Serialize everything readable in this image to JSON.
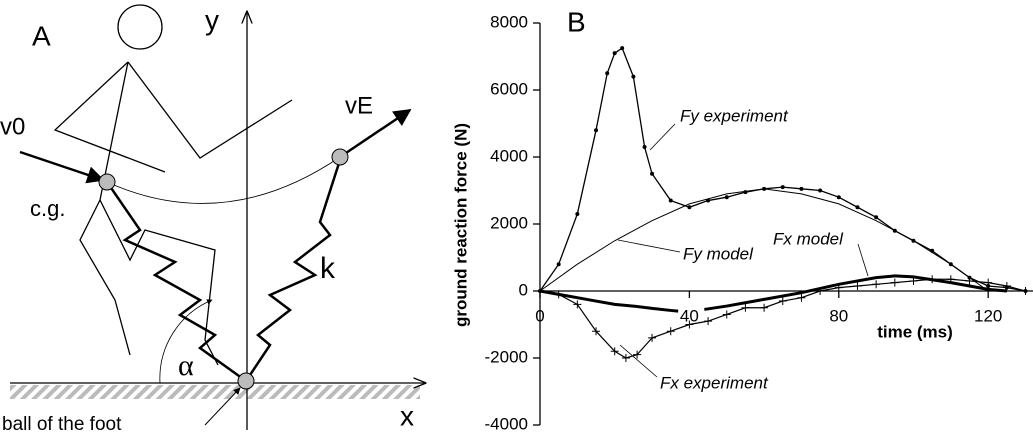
{
  "diagram": {
    "panel_label": "A",
    "y_axis": "y",
    "x_axis": "x",
    "v0": "v0",
    "vE": "vE",
    "cg": "c.g.",
    "spring": "k",
    "angle": "α",
    "foot": "ball of the foot"
  },
  "chart_data": {
    "type": "line",
    "panel_label": "B",
    "x_label": "time (ms)",
    "y_label": "ground reaction force (N)",
    "xlim": [
      0,
      132
    ],
    "xticks": [
      0,
      40,
      80,
      120
    ],
    "ylim": [
      -4000,
      8000
    ],
    "yticks": [
      -4000,
      -2000,
      0,
      2000,
      4000,
      6000,
      8000
    ],
    "series": [
      {
        "name": "Fy experiment",
        "color": "#000000",
        "marker": "dot",
        "linewidth": 1.3,
        "x": [
          0,
          5,
          10,
          15,
          18,
          20,
          22,
          25,
          28,
          30,
          35,
          40,
          45,
          50,
          55,
          60,
          65,
          70,
          75,
          80,
          85,
          90,
          95,
          100,
          105,
          110,
          115,
          120,
          125,
          130
        ],
        "values": [
          0,
          800,
          2300,
          4800,
          6500,
          7100,
          7250,
          6400,
          4300,
          3500,
          2700,
          2500,
          2700,
          2800,
          2950,
          3050,
          3100,
          3050,
          3000,
          2800,
          2500,
          2200,
          1800,
          1500,
          1200,
          800,
          400,
          150,
          100,
          0
        ]
      },
      {
        "name": "Fy model",
        "color": "#000000",
        "marker": "none",
        "linewidth": 1,
        "x": [
          0,
          10,
          20,
          30,
          40,
          50,
          60,
          70,
          80,
          90,
          100,
          110,
          120
        ],
        "values": [
          0,
          800,
          1500,
          2100,
          2600,
          2900,
          3050,
          2900,
          2600,
          2100,
          1500,
          800,
          0
        ]
      },
      {
        "name": "Fx model",
        "color": "#000000",
        "marker": "none",
        "linewidth": 3,
        "x": [
          0,
          5,
          10,
          15,
          20,
          25,
          30,
          35,
          37,
          40,
          44,
          50,
          60,
          70,
          80,
          90,
          95,
          100,
          110,
          120,
          125
        ],
        "values": [
          0,
          -100,
          -200,
          -300,
          -400,
          -450,
          -520,
          -580,
          -600,
          null,
          -550,
          -450,
          -250,
          -50,
          200,
          400,
          450,
          420,
          250,
          50,
          0
        ]
      },
      {
        "name": "Fx experiment",
        "color": "#000000",
        "marker": "plus",
        "linewidth": 1.2,
        "x": [
          0,
          5,
          10,
          15,
          20,
          23,
          26,
          30,
          35,
          40,
          45,
          50,
          55,
          60,
          65,
          70,
          75,
          80,
          85,
          90,
          95,
          100,
          105,
          110,
          115,
          120,
          125,
          130
        ],
        "values": [
          0,
          -100,
          -400,
          -1200,
          -1800,
          -2000,
          -1900,
          -1400,
          -1200,
          -1000,
          -900,
          -700,
          -500,
          -500,
          -300,
          -200,
          0,
          100,
          150,
          200,
          250,
          300,
          350,
          350,
          300,
          250,
          150,
          0
        ]
      }
    ]
  }
}
